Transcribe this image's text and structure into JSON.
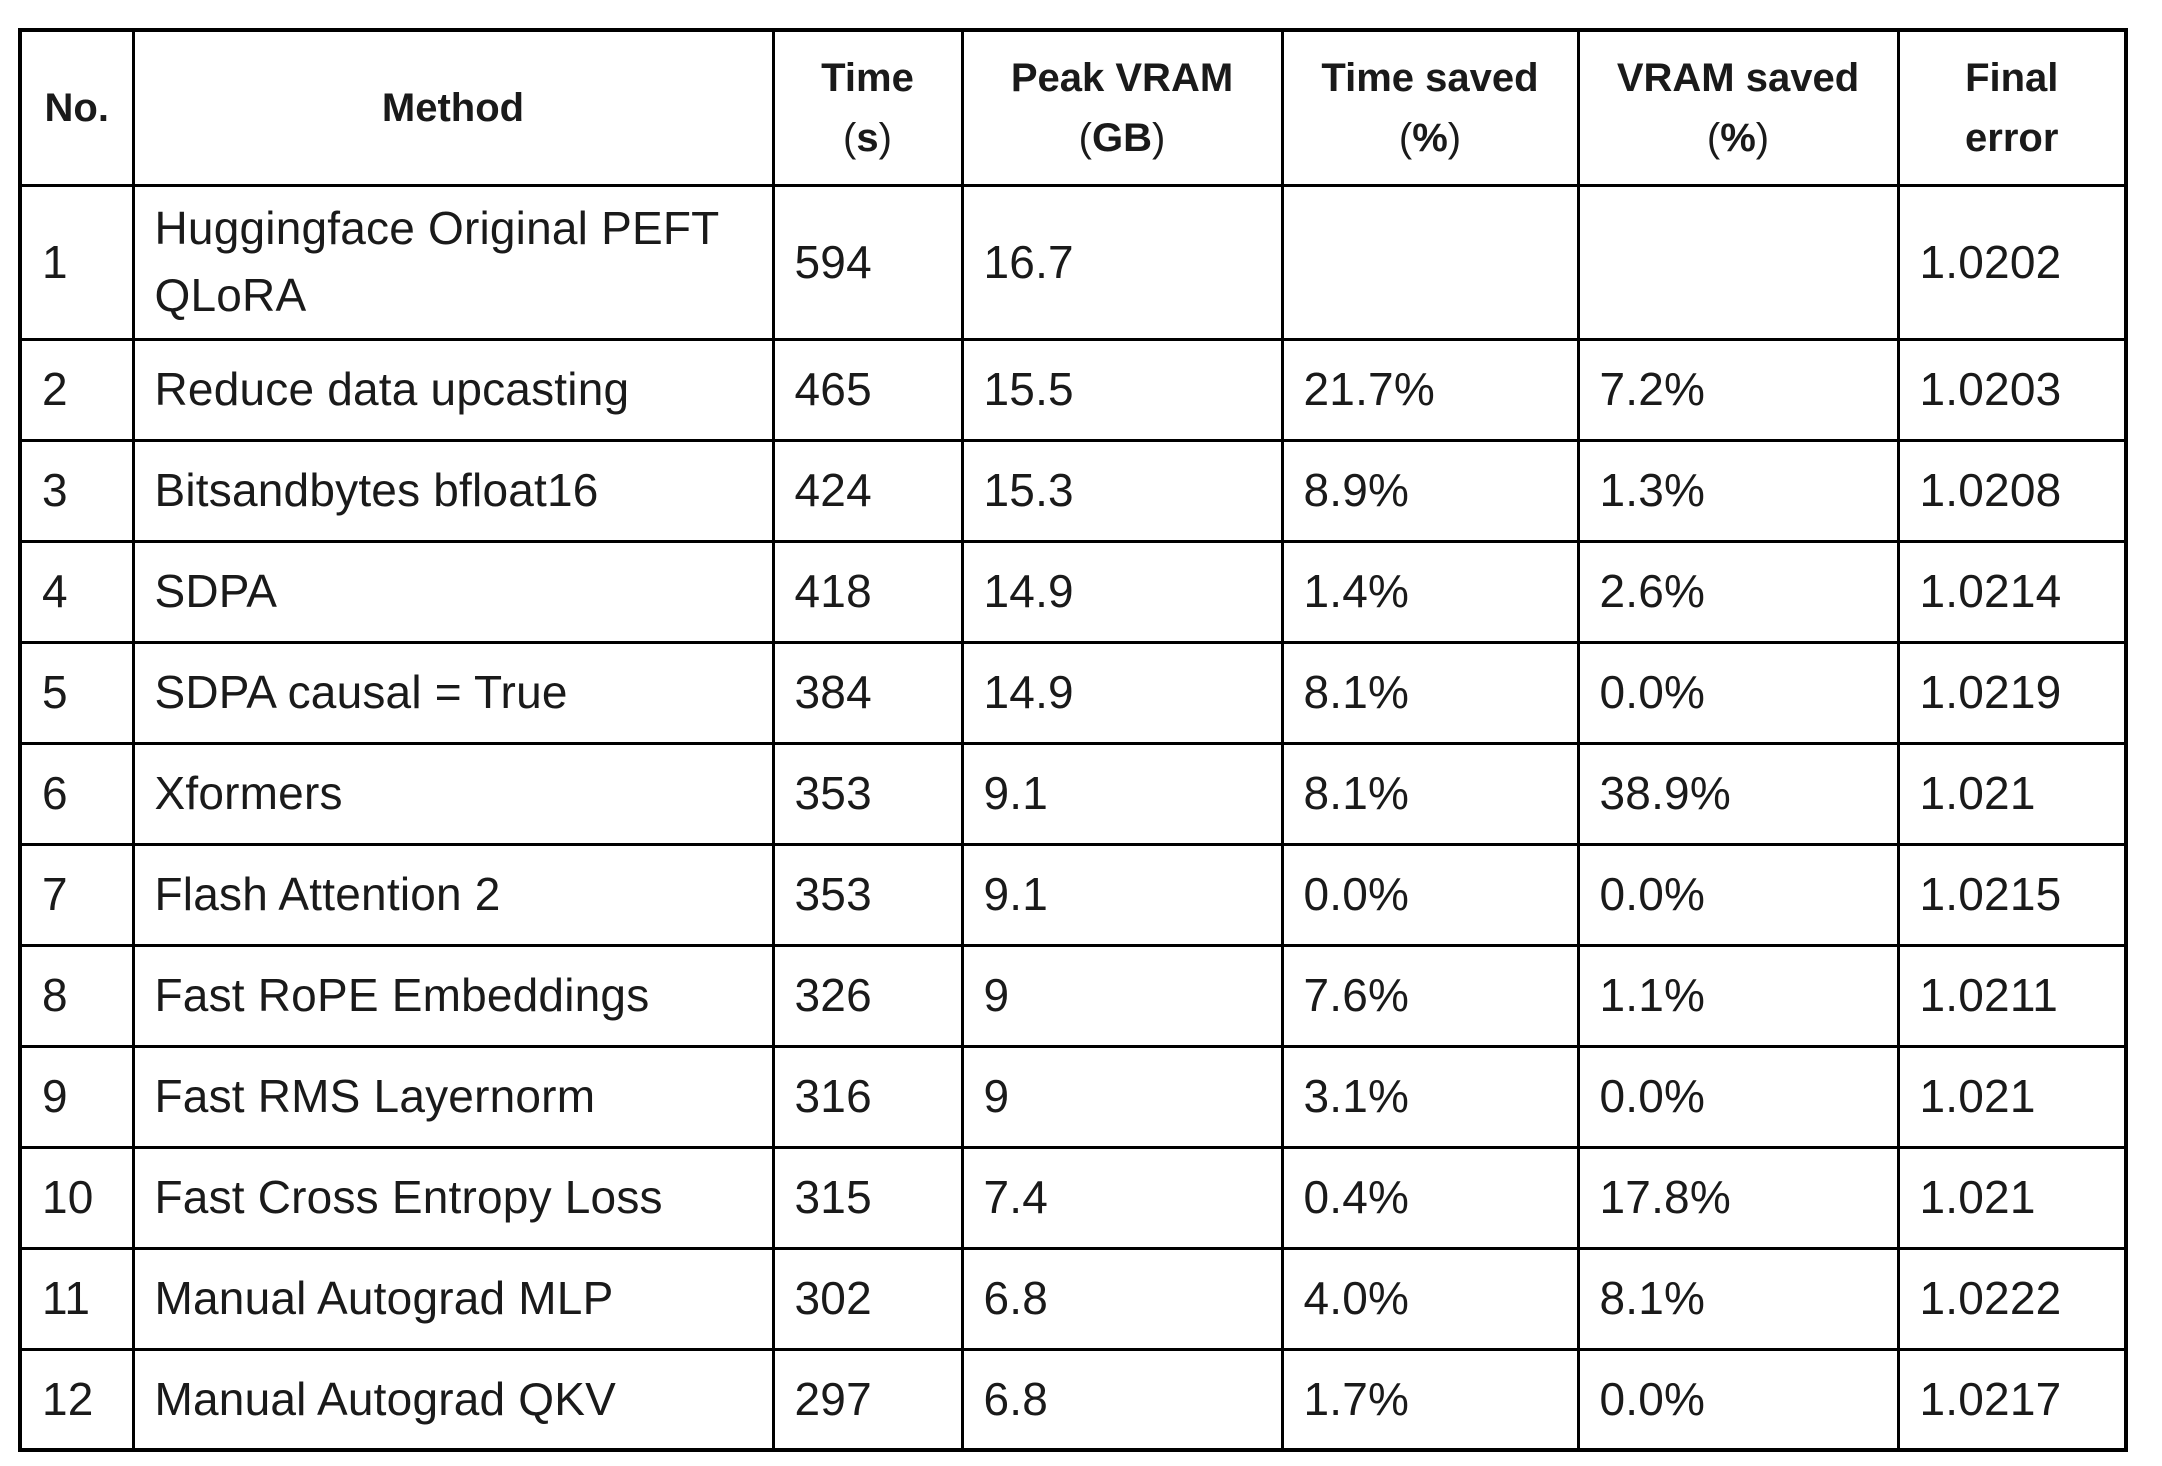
{
  "colors": {
    "text": "#1a1a1a",
    "border": "#000000",
    "background": "#ffffff"
  },
  "chart_data": {
    "type": "table",
    "columns": [
      {
        "title": "No.",
        "unit": null,
        "subtitle": null
      },
      {
        "title": "Method",
        "unit": null,
        "subtitle": null
      },
      {
        "title": "Time",
        "unit": "s",
        "subtitle": null
      },
      {
        "title": "Peak VRAM",
        "unit": "GB",
        "subtitle": null
      },
      {
        "title": "Time saved",
        "unit": "%",
        "subtitle": null
      },
      {
        "title": "VRAM saved",
        "unit": "%",
        "subtitle": null
      },
      {
        "title": "Final",
        "unit": null,
        "subtitle": "error"
      }
    ],
    "column_keys": [
      "no",
      "method",
      "time-s",
      "peak-vram-gb",
      "time-saved-pct",
      "vram-saved-pct",
      "final-error"
    ],
    "rows": [
      [
        "1",
        "Huggingface Original PEFT QLoRA",
        "594",
        "16.7",
        "",
        "",
        "1.0202"
      ],
      [
        "2",
        "Reduce data upcasting",
        "465",
        "15.5",
        "21.7%",
        "7.2%",
        "1.0203"
      ],
      [
        "3",
        "Bitsandbytes bfloat16",
        "424",
        "15.3",
        "8.9%",
        "1.3%",
        "1.0208"
      ],
      [
        "4",
        "SDPA",
        "418",
        "14.9",
        "1.4%",
        "2.6%",
        "1.0214"
      ],
      [
        "5",
        "SDPA causal = True",
        "384",
        "14.9",
        "8.1%",
        "0.0%",
        "1.0219"
      ],
      [
        "6",
        "Xformers",
        "353",
        "9.1",
        "8.1%",
        "38.9%",
        "1.021"
      ],
      [
        "7",
        "Flash Attention 2",
        "353",
        "9.1",
        "0.0%",
        "0.0%",
        "1.0215"
      ],
      [
        "8",
        "Fast RoPE Embeddings",
        "326",
        "9",
        "7.6%",
        "1.1%",
        "1.0211"
      ],
      [
        "9",
        "Fast RMS Layernorm",
        "316",
        "9",
        "3.1%",
        "0.0%",
        "1.021"
      ],
      [
        "10",
        "Fast Cross Entropy Loss",
        "315",
        "7.4",
        "0.4%",
        "17.8%",
        "1.021"
      ],
      [
        "11",
        "Manual Autograd MLP",
        "302",
        "6.8",
        "4.0%",
        "8.1%",
        "1.0222"
      ],
      [
        "12",
        "Manual Autograd QKV",
        "297",
        "6.8",
        "1.7%",
        "0.0%",
        "1.0217"
      ]
    ]
  }
}
